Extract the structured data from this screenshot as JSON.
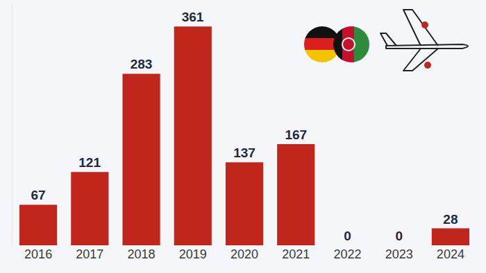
{
  "chart_data": {
    "type": "bar",
    "categories": [
      "2016",
      "2017",
      "2018",
      "2019",
      "2020",
      "2021",
      "2022",
      "2023",
      "2024"
    ],
    "values": [
      67,
      121,
      283,
      361,
      137,
      167,
      0,
      0,
      28
    ],
    "color": "#c1261c",
    "ylim": [
      0,
      400
    ],
    "grid": false,
    "data_labels": true,
    "tick_labels": "x"
  }
}
